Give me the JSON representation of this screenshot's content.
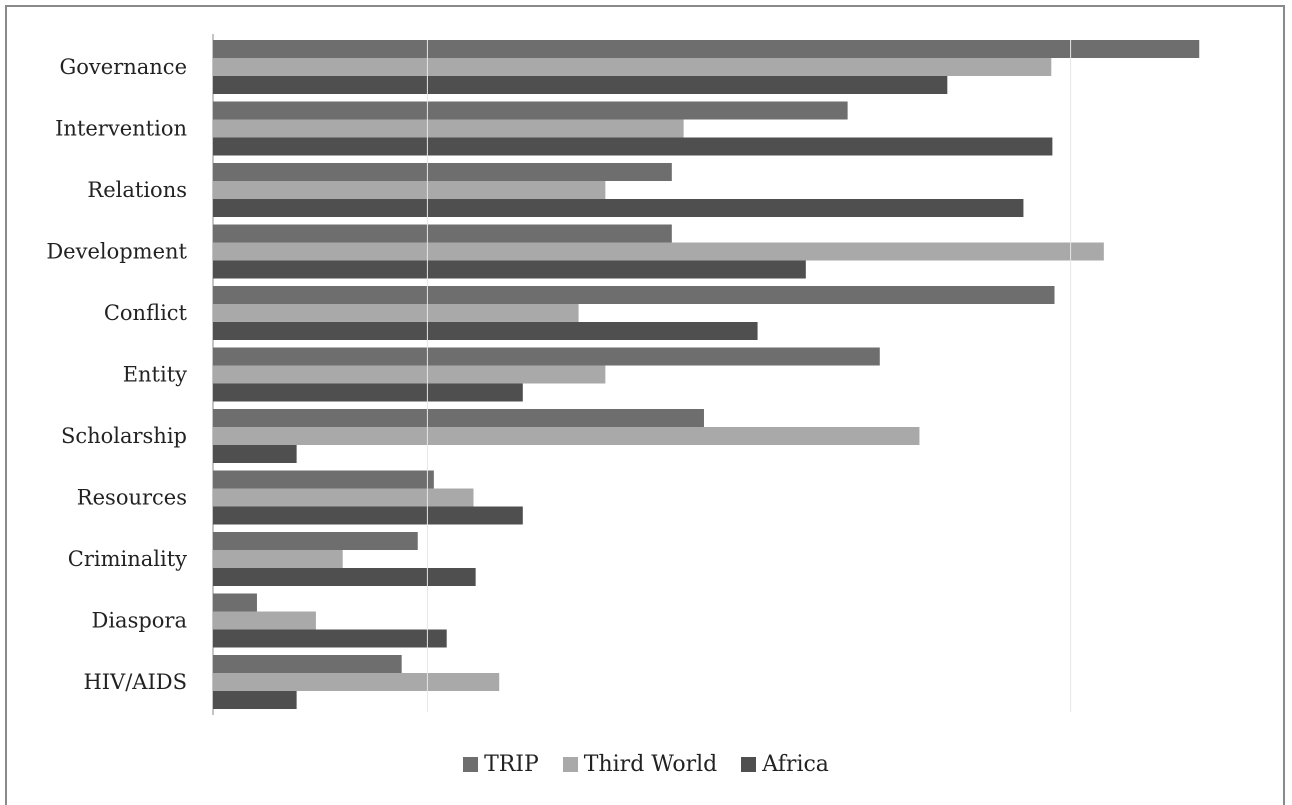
{
  "chart_data": {
    "type": "bar",
    "orientation": "horizontal",
    "categories": [
      "Governance",
      "Intervention",
      "Relations",
      "Development",
      "Conflict",
      "Entity",
      "Scholarship",
      "Resources",
      "Criminality",
      "Diaspora",
      "HIV/AIDS"
    ],
    "series": [
      {
        "name": "TRIP",
        "color": "#6e6e6e",
        "values": [
          92,
          59.2,
          42.8,
          42.8,
          78.5,
          62.2,
          45.8,
          20.6,
          19.1,
          4.1,
          17.6
        ]
      },
      {
        "name": "Third World",
        "color": "#a9a9a9",
        "values": [
          78.2,
          43.9,
          36.6,
          83.1,
          34.1,
          36.6,
          65.9,
          24.3,
          12.1,
          9.6,
          26.7
        ]
      },
      {
        "name": "Africa",
        "color": "#4f4f4f",
        "values": [
          68.5,
          78.3,
          75.6,
          55.3,
          50.8,
          28.9,
          7.8,
          28.9,
          24.5,
          21.8,
          7.8
        ]
      }
    ],
    "xlim": [
      0,
      100
    ],
    "grid": true,
    "legend_position": "bottom",
    "title": "",
    "xlabel": "",
    "ylabel": ""
  }
}
